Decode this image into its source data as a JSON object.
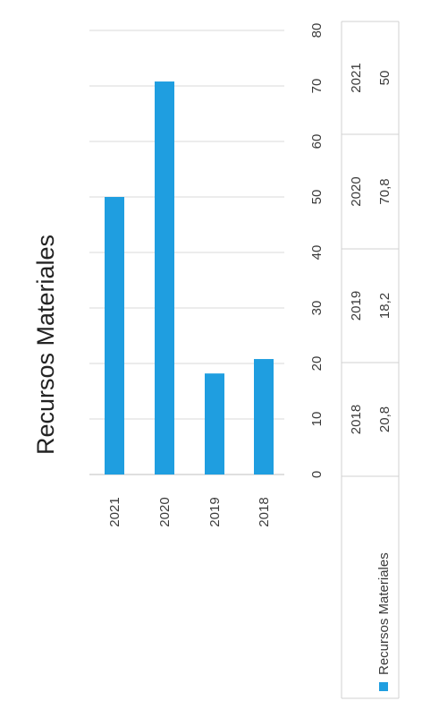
{
  "chart_data": {
    "type": "bar",
    "title": "Recursos Materiales",
    "categories": [
      "2021",
      "2020",
      "2019",
      "2018"
    ],
    "series": [
      {
        "name": "Recursos Materiales",
        "values": [
          50,
          70.8,
          18.2,
          20.8
        ],
        "color": "#1f9ee0"
      }
    ],
    "value_labels": [
      "50",
      "70,8",
      "18,2",
      "20,8"
    ],
    "ylim": [
      0,
      80
    ],
    "yticks": [
      0,
      10,
      20,
      30,
      40,
      50,
      60,
      70,
      80
    ],
    "grid": true,
    "legend": "bottom-left",
    "data_table": true,
    "orientation": "rotated-90"
  }
}
